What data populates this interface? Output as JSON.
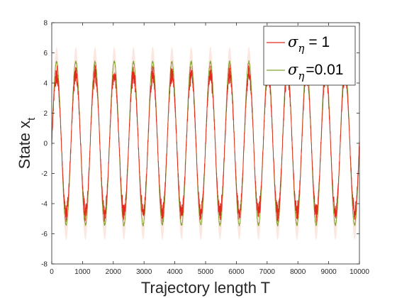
{
  "chart_data": {
    "type": "line",
    "title": "",
    "xlabel": "Trajectory length T",
    "ylabel_main": "State  x",
    "ylabel_sub": "t",
    "xlim": [
      0,
      10000
    ],
    "ylim": [
      -8,
      8
    ],
    "x_ticks": [
      0,
      1000,
      2000,
      3000,
      4000,
      5000,
      6000,
      7000,
      8000,
      9000,
      10000
    ],
    "y_ticks": [
      -8,
      -6,
      -4,
      -2,
      0,
      2,
      4,
      6,
      8
    ],
    "grid": false,
    "legend_position": "top-right",
    "signal": {
      "form": "sinusoid",
      "period": 625,
      "peak_high_noise": 4.6,
      "peak_low_noise": 5.4,
      "band_halfwidth": 1.0
    },
    "series": [
      {
        "name_symbol": "σ",
        "name_sub": "η",
        "name_value": "= 1",
        "color": "#e32a1c",
        "amplitude": 4.6,
        "noise": "high"
      },
      {
        "name_symbol": "σ",
        "name_sub": "η",
        "name_value": "=0.01",
        "color": "#7fa32f",
        "amplitude": 5.4,
        "noise": "low"
      }
    ],
    "band_color": "#f6c9b8"
  }
}
